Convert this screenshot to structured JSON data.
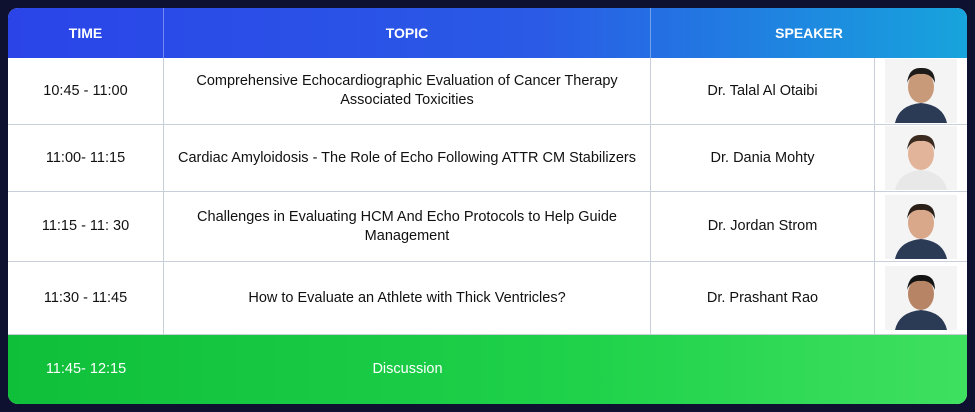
{
  "header": {
    "columns": [
      "TIME",
      "TOPIC",
      "SPEAKER"
    ]
  },
  "table": {
    "rows": [
      [
        "10:45 - 11:00",
        "Comprehensive Echocardiographic Evaluation of Cancer Therapy Associated Toxicities",
        "Dr. Talal Al Otaibi"
      ],
      [
        "11:00- 11:15",
        "Cardiac Amyloidosis - The Role of Echo Following ATTR CM Stabilizers",
        "Dr. Dania Mohty"
      ],
      [
        "11:15 - 11: 30",
        "Challenges in Evaluating HCM And Echo Protocols to Help Guide Management",
        "Dr. Jordan Strom"
      ],
      [
        "11:30 - 11:45",
        "How to Evaluate an Athlete with Thick Ventricles?",
        "Dr. Prashant Rao"
      ]
    ],
    "footer_row": [
      "11:45- 12:15",
      "Discussion"
    ]
  }
}
